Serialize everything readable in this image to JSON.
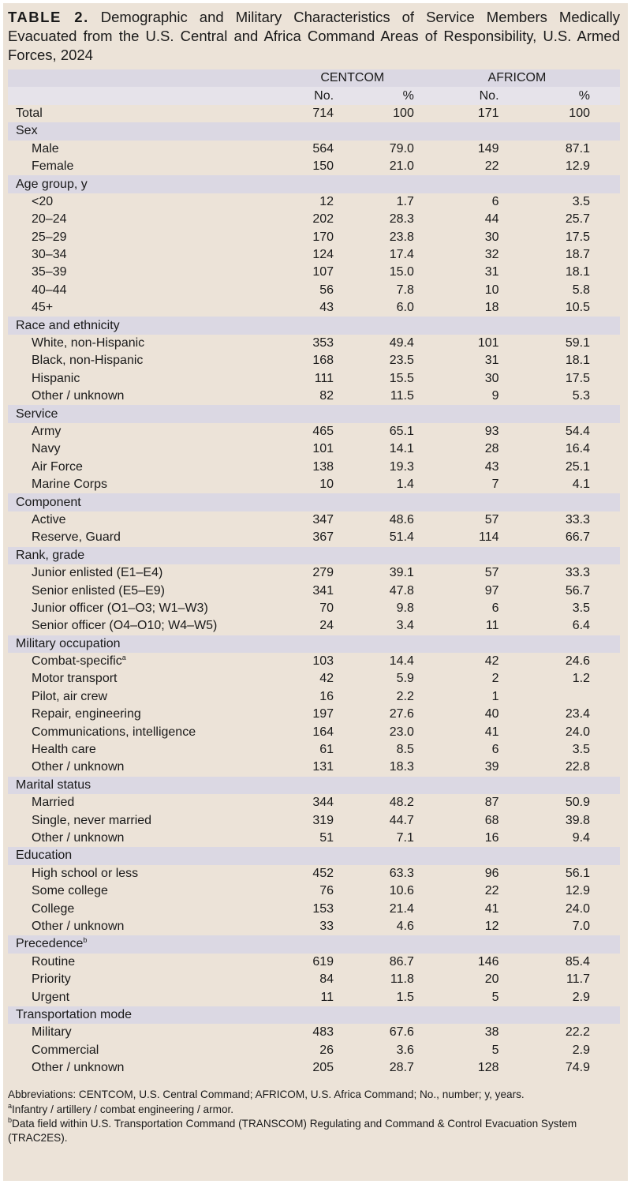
{
  "caption": {
    "label": "TABLE 2.",
    "text": "Demographic and Military Characteristics of Service Members Medically Evacuated from the U.S. Central and Africa Command Areas of Responsibility, U.S. Armed Forces, 2024"
  },
  "header": {
    "group1": "CENTCOM",
    "group2": "AFRICOM",
    "no1": "No.",
    "pct1": "%",
    "no2": "No.",
    "pct2": "%"
  },
  "total": {
    "label": "Total",
    "c_no": "714",
    "c_pct": "100",
    "a_no": "171",
    "a_pct": "100"
  },
  "sections": [
    {
      "title": "Sex",
      "rows": [
        {
          "label": "Male",
          "c_no": "564",
          "c_pct": "79.0",
          "a_no": "149",
          "a_pct": "87.1"
        },
        {
          "label": "Female",
          "c_no": "150",
          "c_pct": "21.0",
          "a_no": "22",
          "a_pct": "12.9"
        }
      ]
    },
    {
      "title": "Age group, y",
      "rows": [
        {
          "label": "<20",
          "c_no": "12",
          "c_pct": "1.7",
          "a_no": "6",
          "a_pct": "3.5"
        },
        {
          "label": "20–24",
          "c_no": "202",
          "c_pct": "28.3",
          "a_no": "44",
          "a_pct": "25.7"
        },
        {
          "label": "25–29",
          "c_no": "170",
          "c_pct": "23.8",
          "a_no": "30",
          "a_pct": "17.5"
        },
        {
          "label": "30–34",
          "c_no": "124",
          "c_pct": "17.4",
          "a_no": "32",
          "a_pct": "18.7"
        },
        {
          "label": "35–39",
          "c_no": "107",
          "c_pct": "15.0",
          "a_no": "31",
          "a_pct": "18.1"
        },
        {
          "label": "40–44",
          "c_no": "56",
          "c_pct": "7.8",
          "a_no": "10",
          "a_pct": "5.8"
        },
        {
          "label": "45+",
          "c_no": "43",
          "c_pct": "6.0",
          "a_no": "18",
          "a_pct": "10.5"
        }
      ]
    },
    {
      "title": "Race and ethnicity",
      "rows": [
        {
          "label": "White, non-Hispanic",
          "c_no": "353",
          "c_pct": "49.4",
          "a_no": "101",
          "a_pct": "59.1"
        },
        {
          "label": "Black, non-Hispanic",
          "c_no": "168",
          "c_pct": "23.5",
          "a_no": "31",
          "a_pct": "18.1"
        },
        {
          "label": "Hispanic",
          "c_no": "111",
          "c_pct": "15.5",
          "a_no": "30",
          "a_pct": "17.5"
        },
        {
          "label": "Other / unknown",
          "c_no": "82",
          "c_pct": "11.5",
          "a_no": "9",
          "a_pct": "5.3"
        }
      ]
    },
    {
      "title": "Service",
      "rows": [
        {
          "label": "Army",
          "c_no": "465",
          "c_pct": "65.1",
          "a_no": "93",
          "a_pct": "54.4"
        },
        {
          "label": "Navy",
          "c_no": "101",
          "c_pct": "14.1",
          "a_no": "28",
          "a_pct": "16.4"
        },
        {
          "label": "Air Force",
          "c_no": "138",
          "c_pct": "19.3",
          "a_no": "43",
          "a_pct": "25.1"
        },
        {
          "label": "Marine Corps",
          "c_no": "10",
          "c_pct": "1.4",
          "a_no": "7",
          "a_pct": "4.1"
        }
      ]
    },
    {
      "title": "Component",
      "rows": [
        {
          "label": "Active",
          "c_no": "347",
          "c_pct": "48.6",
          "a_no": "57",
          "a_pct": "33.3"
        },
        {
          "label": "Reserve, Guard",
          "c_no": "367",
          "c_pct": "51.4",
          "a_no": "114",
          "a_pct": "66.7"
        }
      ]
    },
    {
      "title": "Rank, grade",
      "rows": [
        {
          "label": "Junior enlisted (E1–E4)",
          "c_no": "279",
          "c_pct": "39.1",
          "a_no": "57",
          "a_pct": "33.3"
        },
        {
          "label": "Senior enlisted (E5–E9)",
          "c_no": "341",
          "c_pct": "47.8",
          "a_no": "97",
          "a_pct": "56.7"
        },
        {
          "label": "Junior officer (O1–O3; W1–W3)",
          "c_no": "70",
          "c_pct": "9.8",
          "a_no": "6",
          "a_pct": "3.5"
        },
        {
          "label": "Senior officer (O4–O10; W4–W5)",
          "c_no": "24",
          "c_pct": "3.4",
          "a_no": "11",
          "a_pct": "6.4"
        }
      ]
    },
    {
      "title": "Military occupation",
      "rows": [
        {
          "label": "Combat-specific",
          "sup": "a",
          "c_no": "103",
          "c_pct": "14.4",
          "a_no": "42",
          "a_pct": "24.6"
        },
        {
          "label": "Motor transport",
          "c_no": "42",
          "c_pct": "5.9",
          "a_no": "2",
          "a_pct": "1.2"
        },
        {
          "label": "Pilot, air crew",
          "c_no": "16",
          "c_pct": "2.2",
          "a_no": "1",
          "a_pct": ""
        },
        {
          "label": "Repair, engineering",
          "c_no": "197",
          "c_pct": "27.6",
          "a_no": "40",
          "a_pct": "23.4"
        },
        {
          "label": "Communications, intelligence",
          "c_no": "164",
          "c_pct": "23.0",
          "a_no": "41",
          "a_pct": "24.0"
        },
        {
          "label": "Health care",
          "c_no": "61",
          "c_pct": "8.5",
          "a_no": "6",
          "a_pct": "3.5"
        },
        {
          "label": "Other / unknown",
          "c_no": "131",
          "c_pct": "18.3",
          "a_no": "39",
          "a_pct": "22.8"
        }
      ]
    },
    {
      "title": "Marital status",
      "rows": [
        {
          "label": "Married",
          "c_no": "344",
          "c_pct": "48.2",
          "a_no": "87",
          "a_pct": "50.9"
        },
        {
          "label": "Single, never married",
          "c_no": "319",
          "c_pct": "44.7",
          "a_no": "68",
          "a_pct": "39.8"
        },
        {
          "label": "Other / unknown",
          "c_no": "51",
          "c_pct": "7.1",
          "a_no": "16",
          "a_pct": "9.4"
        }
      ]
    },
    {
      "title": "Education",
      "rows": [
        {
          "label": "High school or less",
          "c_no": "452",
          "c_pct": "63.3",
          "a_no": "96",
          "a_pct": "56.1"
        },
        {
          "label": "Some college",
          "c_no": "76",
          "c_pct": "10.6",
          "a_no": "22",
          "a_pct": "12.9"
        },
        {
          "label": "College",
          "c_no": "153",
          "c_pct": "21.4",
          "a_no": "41",
          "a_pct": "24.0"
        },
        {
          "label": "Other / unknown",
          "c_no": "33",
          "c_pct": "4.6",
          "a_no": "12",
          "a_pct": "7.0"
        }
      ]
    },
    {
      "title": "Precedence",
      "sup": "b",
      "rows": [
        {
          "label": "Routine",
          "c_no": "619",
          "c_pct": "86.7",
          "a_no": "146",
          "a_pct": "85.4"
        },
        {
          "label": "Priority",
          "c_no": "84",
          "c_pct": "11.8",
          "a_no": "20",
          "a_pct": "11.7"
        },
        {
          "label": "Urgent",
          "c_no": "11",
          "c_pct": "1.5",
          "a_no": "5",
          "a_pct": "2.9"
        }
      ]
    },
    {
      "title": "Transportation mode",
      "rows": [
        {
          "label": "Military",
          "c_no": "483",
          "c_pct": "67.6",
          "a_no": "38",
          "a_pct": "22.2"
        },
        {
          "label": "Commercial",
          "c_no": "26",
          "c_pct": "3.6",
          "a_no": "5",
          "a_pct": "2.9"
        },
        {
          "label": "Other / unknown",
          "c_no": "205",
          "c_pct": "28.7",
          "a_no": "128",
          "a_pct": "74.9"
        }
      ]
    }
  ],
  "footnotes": {
    "abbreviations": "Abbreviations: CENTCOM, U.S. Central Command; AFRICOM, U.S. Africa Command; No., number; y, years.",
    "a_mark": "a",
    "a_text": "Infantry / artillery / combat engineering / armor.",
    "b_mark": "b",
    "b_text": "Data field within U.S. Transportation Command (TRANSCOM) Regulating and Command & Control Evacuation System (TRAC2ES)."
  }
}
